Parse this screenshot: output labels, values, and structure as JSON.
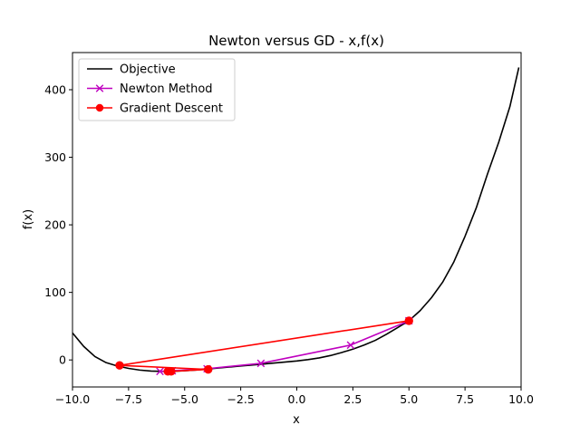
{
  "chart_data": {
    "type": "line",
    "title": "Newton versus GD - x,f(x)",
    "xlabel": "x",
    "ylabel": "f(x)",
    "xlim": [
      -10.0,
      10.0
    ],
    "ylim": [
      -40,
      455
    ],
    "xticks": [
      -10.0,
      -7.5,
      -5.0,
      -2.5,
      0.0,
      2.5,
      5.0,
      7.5,
      10.0
    ],
    "xtick_labels": [
      "−10.0",
      "−7.5",
      "−5.0",
      "−2.5",
      "0.0",
      "2.5",
      "5.0",
      "7.5",
      "10.0"
    ],
    "yticks": [
      0,
      100,
      200,
      300,
      400
    ],
    "ytick_labels": [
      "0",
      "100",
      "200",
      "300",
      "400"
    ],
    "grid": false,
    "legend_position": "upper-left",
    "series": [
      {
        "name": "Objective",
        "color": "#000000",
        "marker": "none",
        "x": [
          -10.0,
          -9.5,
          -9.0,
          -8.5,
          -8.0,
          -7.5,
          -7.0,
          -6.5,
          -6.0,
          -5.5,
          -5.0,
          -4.5,
          -4.0,
          -3.5,
          -3.0,
          -2.5,
          -2.0,
          -1.5,
          -1.0,
          -0.5,
          0.0,
          0.5,
          1.0,
          1.5,
          2.0,
          2.5,
          3.0,
          3.5,
          4.0,
          4.5,
          5.0,
          5.5,
          6.0,
          6.5,
          7.0,
          7.5,
          8.0,
          8.5,
          9.0,
          9.5,
          9.9
        ],
        "y": [
          40,
          20,
          5,
          -4,
          -9,
          -12.5,
          -15,
          -16.5,
          -17,
          -16.8,
          -16,
          -15,
          -13.5,
          -12,
          -10.5,
          -9,
          -7.5,
          -6,
          -4.5,
          -3,
          -1.5,
          0.5,
          3,
          6.5,
          11,
          16,
          22,
          29,
          38,
          48,
          58,
          73,
          92,
          115,
          145,
          183,
          225,
          275,
          322,
          375,
          433
        ]
      },
      {
        "name": "Newton Method",
        "color": "#bf00bf",
        "marker": "x",
        "x": [
          5.0,
          2.4,
          -1.6,
          -4.0,
          -5.55,
          -6.1
        ],
        "y": [
          58,
          22,
          -5,
          -13,
          -16,
          -17
        ]
      },
      {
        "name": "Gradient Descent",
        "color": "#ff0000",
        "marker": "o",
        "x": [
          5.0,
          -7.9,
          -3.95,
          -5.6,
          -5.75
        ],
        "y": [
          58,
          -8,
          -14,
          -17,
          -17
        ]
      }
    ]
  }
}
